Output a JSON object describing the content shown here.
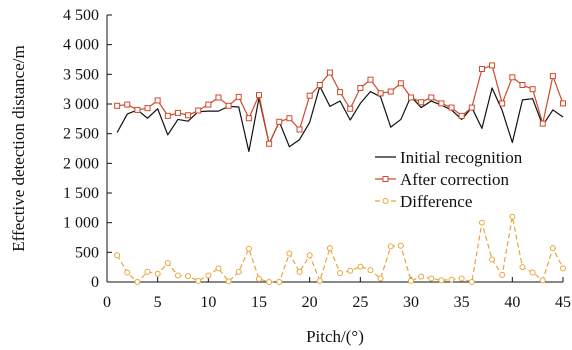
{
  "chart_data": {
    "type": "line",
    "xlabel": "Pitch/(°)",
    "ylabel": "Effective detection distance/m",
    "xlim": [
      0,
      45
    ],
    "ylim": [
      0,
      4500
    ],
    "x_ticks": [
      0,
      5,
      10,
      15,
      20,
      25,
      30,
      35,
      40,
      45
    ],
    "x_tick_labels": [
      "0",
      "5",
      "10",
      "15",
      "20",
      "25",
      "30",
      "35",
      "40",
      "45"
    ],
    "y_ticks": [
      0,
      500,
      1000,
      1500,
      2000,
      2500,
      3000,
      3500,
      4000,
      4500
    ],
    "y_tick_labels": [
      "0",
      "500",
      "1 000",
      "1 500",
      "2 000",
      "2 500",
      "3 000",
      "3 500",
      "4 000",
      "4 500"
    ],
    "grid": false,
    "legend_position": "right",
    "x": [
      1,
      2,
      3,
      4,
      5,
      6,
      7,
      8,
      9,
      10,
      11,
      12,
      13,
      14,
      15,
      16,
      17,
      18,
      19,
      20,
      21,
      22,
      23,
      24,
      25,
      26,
      27,
      28,
      29,
      30,
      31,
      32,
      33,
      34,
      35,
      36,
      37,
      38,
      39,
      40,
      41,
      42,
      43,
      44,
      45
    ],
    "series": [
      {
        "name": "Initial recognition",
        "color": "#111111",
        "marker": "none",
        "dash": "solid",
        "values": [
          2520,
          2830,
          2900,
          2760,
          2920,
          2480,
          2740,
          2710,
          2870,
          2880,
          2880,
          2960,
          2950,
          2200,
          3100,
          2330,
          2700,
          2280,
          2400,
          2690,
          3300,
          2960,
          3050,
          2730,
          3010,
          3210,
          3120,
          2610,
          2740,
          3130,
          2940,
          3050,
          2980,
          2900,
          2740,
          2940,
          2590,
          3270,
          2890,
          2350,
          3070,
          3090,
          2640,
          2900,
          2780
        ]
      },
      {
        "name": "After correction",
        "color": "#d04a2a",
        "marker": "square",
        "dash": "solid",
        "values": [
          2970,
          2990,
          2900,
          2930,
          3060,
          2800,
          2850,
          2810,
          2890,
          2990,
          3110,
          2970,
          3120,
          2760,
          3150,
          2330,
          2700,
          2760,
          2570,
          3140,
          3320,
          3530,
          3200,
          2920,
          3270,
          3410,
          3180,
          3210,
          3350,
          3110,
          3030,
          3110,
          3010,
          2940,
          2800,
          2940,
          3590,
          3650,
          3010,
          3450,
          3320,
          3250,
          2670,
          3470,
          3010
        ]
      },
      {
        "name": "Difference",
        "color": "#e8a53c",
        "marker": "circle",
        "dash": "dashed",
        "values": [
          450,
          160,
          0,
          170,
          140,
          320,
          110,
          100,
          20,
          110,
          230,
          10,
          170,
          560,
          50,
          0,
          0,
          480,
          170,
          450,
          20,
          570,
          150,
          190,
          260,
          200,
          60,
          600,
          610,
          20,
          90,
          60,
          30,
          40,
          60,
          0,
          1000,
          380,
          120,
          1100,
          250,
          160,
          30,
          570,
          230
        ]
      }
    ]
  }
}
